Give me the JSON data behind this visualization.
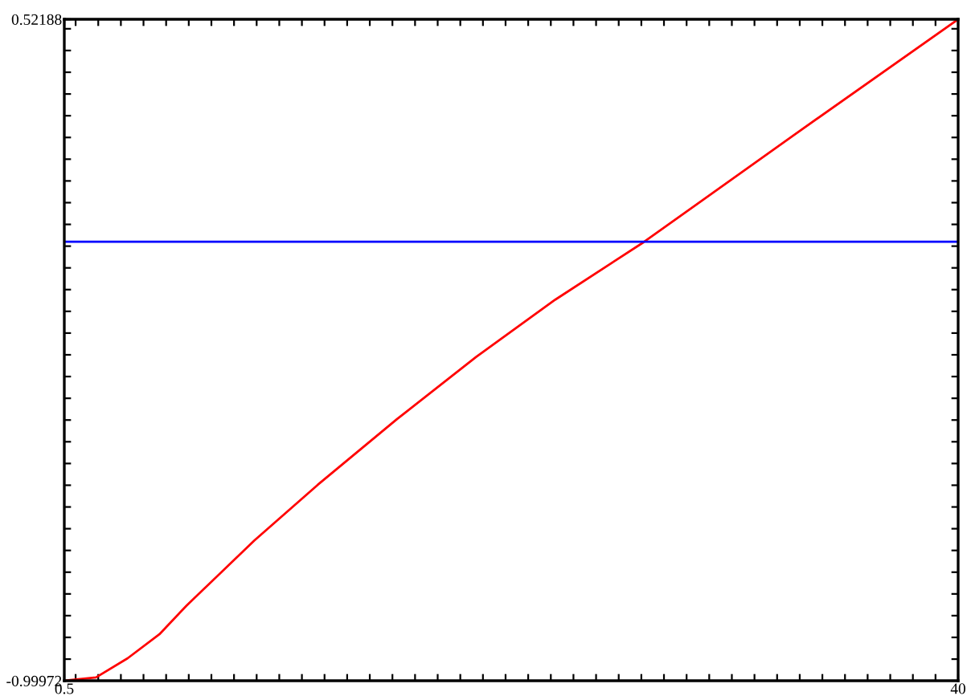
{
  "chart_data": {
    "type": "line",
    "xlim": [
      0.5,
      40
    ],
    "ylim": [
      -0.99972,
      0.52188
    ],
    "xticks": [
      {
        "value": 0.5,
        "label": "0.5"
      },
      {
        "value": 1,
        "label": null
      },
      {
        "value": 2,
        "label": null
      },
      {
        "value": 3,
        "label": null
      },
      {
        "value": 4,
        "label": null
      },
      {
        "value": 5,
        "label": null
      },
      {
        "value": 6,
        "label": null
      },
      {
        "value": 7,
        "label": null
      },
      {
        "value": 8,
        "label": null
      },
      {
        "value": 9,
        "label": null
      },
      {
        "value": 10,
        "label": null
      },
      {
        "value": 11,
        "label": null
      },
      {
        "value": 12,
        "label": null
      },
      {
        "value": 13,
        "label": null
      },
      {
        "value": 14,
        "label": null
      },
      {
        "value": 15,
        "label": null
      },
      {
        "value": 16,
        "label": null
      },
      {
        "value": 17,
        "label": null
      },
      {
        "value": 18,
        "label": null
      },
      {
        "value": 19,
        "label": null
      },
      {
        "value": 20,
        "label": null
      },
      {
        "value": 21,
        "label": null
      },
      {
        "value": 22,
        "label": null
      },
      {
        "value": 23,
        "label": null
      },
      {
        "value": 24,
        "label": null
      },
      {
        "value": 25,
        "label": null
      },
      {
        "value": 26,
        "label": null
      },
      {
        "value": 27,
        "label": null
      },
      {
        "value": 28,
        "label": null
      },
      {
        "value": 29,
        "label": null
      },
      {
        "value": 30,
        "label": null
      },
      {
        "value": 31,
        "label": null
      },
      {
        "value": 32,
        "label": null
      },
      {
        "value": 33,
        "label": null
      },
      {
        "value": 34,
        "label": null
      },
      {
        "value": 35,
        "label": null
      },
      {
        "value": 36,
        "label": null
      },
      {
        "value": 37,
        "label": null
      },
      {
        "value": 38,
        "label": null
      },
      {
        "value": 39,
        "label": null
      },
      {
        "value": 40,
        "label": "40"
      }
    ],
    "yticks": [
      {
        "value": -0.99972,
        "label": "-0.99972"
      },
      {
        "value": -0.95,
        "label": null
      },
      {
        "value": -0.9,
        "label": null
      },
      {
        "value": -0.85,
        "label": null
      },
      {
        "value": -0.8,
        "label": null
      },
      {
        "value": -0.75,
        "label": null
      },
      {
        "value": -0.7,
        "label": null
      },
      {
        "value": -0.65,
        "label": null
      },
      {
        "value": -0.6,
        "label": null
      },
      {
        "value": -0.55,
        "label": null
      },
      {
        "value": -0.5,
        "label": null
      },
      {
        "value": -0.45,
        "label": null
      },
      {
        "value": -0.4,
        "label": null
      },
      {
        "value": -0.35,
        "label": null
      },
      {
        "value": -0.3,
        "label": null
      },
      {
        "value": -0.25,
        "label": null
      },
      {
        "value": -0.2,
        "label": null
      },
      {
        "value": -0.15,
        "label": null
      },
      {
        "value": -0.1,
        "label": null
      },
      {
        "value": -0.05,
        "label": null
      },
      {
        "value": 0,
        "label": null
      },
      {
        "value": 0.05,
        "label": null
      },
      {
        "value": 0.1,
        "label": null
      },
      {
        "value": 0.15,
        "label": null
      },
      {
        "value": 0.2,
        "label": null
      },
      {
        "value": 0.25,
        "label": null
      },
      {
        "value": 0.3,
        "label": null
      },
      {
        "value": 0.35,
        "label": null
      },
      {
        "value": 0.4,
        "label": null
      },
      {
        "value": 0.45,
        "label": null
      },
      {
        "value": 0.5,
        "label": null
      },
      {
        "value": 0.52188,
        "label": "0.52188"
      }
    ],
    "grid": false,
    "series": [
      {
        "color": "#ff0000",
        "x": [
          0.5,
          1.9,
          3.3,
          4.7,
          5.9,
          8.9,
          11.7,
          15.2,
          18.7,
          22.2,
          26.1,
          32.7,
          40
        ],
        "values": [
          -0.99972,
          -0.992,
          -0.948,
          -0.893,
          -0.827,
          -0.677,
          -0.549,
          -0.398,
          -0.255,
          -0.123,
          0.009,
          0.254,
          0.52188
        ]
      },
      {
        "color": "#0000ff",
        "x": [
          0.5,
          40
        ],
        "values": [
          0.01,
          0.01
        ]
      }
    ]
  }
}
